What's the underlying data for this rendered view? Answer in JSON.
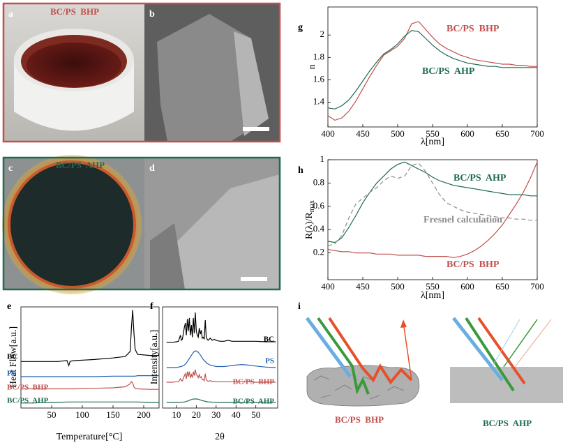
{
  "photos": {
    "a": "a",
    "b": "b",
    "c": "c",
    "d": "d",
    "a_label": "BC/PS  BHP",
    "c_label": "BC/PS  AHP"
  },
  "chart_data": [
    {
      "type": "line",
      "panel": "g",
      "ylabel": "n",
      "xlabel": "λ[nm]",
      "xlim": [
        400,
        700
      ],
      "xticks": [
        400,
        450,
        500,
        550,
        600,
        650,
        700
      ],
      "ylim": [
        1.18,
        2.25
      ],
      "yticks": [
        1.4,
        1.6,
        1.8,
        2
      ],
      "x": [
        400,
        410,
        420,
        430,
        440,
        450,
        460,
        470,
        480,
        490,
        500,
        510,
        520,
        530,
        540,
        550,
        560,
        570,
        580,
        590,
        600,
        610,
        620,
        630,
        640,
        650,
        660,
        670,
        680,
        690,
        700
      ],
      "series": [
        {
          "name": "BC/PS  BHP",
          "color": "#c0504d",
          "values": [
            1.28,
            1.24,
            1.26,
            1.32,
            1.41,
            1.52,
            1.63,
            1.73,
            1.82,
            1.86,
            1.9,
            1.97,
            2.1,
            2.12,
            2.05,
            1.98,
            1.92,
            1.88,
            1.85,
            1.82,
            1.8,
            1.78,
            1.77,
            1.76,
            1.75,
            1.74,
            1.74,
            1.73,
            1.73,
            1.72,
            1.72
          ]
        },
        {
          "name": "BC/PS  AHP",
          "color": "#1e6b50",
          "values": [
            1.35,
            1.34,
            1.37,
            1.42,
            1.5,
            1.59,
            1.68,
            1.76,
            1.83,
            1.87,
            1.92,
            1.99,
            2.04,
            2.03,
            1.97,
            1.91,
            1.86,
            1.82,
            1.79,
            1.77,
            1.75,
            1.74,
            1.73,
            1.72,
            1.72,
            1.71,
            1.71,
            1.71,
            1.71,
            1.71,
            1.71
          ]
        }
      ]
    },
    {
      "type": "line",
      "panel": "h",
      "ylabel": "R(λ)/R",
      "ylabel_subscript": "max",
      "xlabel": "λ[nm]",
      "xlim": [
        400,
        700
      ],
      "xticks": [
        400,
        450,
        500,
        550,
        600,
        650,
        700
      ],
      "ylim": [
        -0.03,
        1
      ],
      "yticks": [
        0.2,
        0.4,
        0.6,
        0.8,
        1
      ],
      "x": [
        400,
        410,
        420,
        430,
        440,
        450,
        460,
        470,
        480,
        490,
        500,
        510,
        520,
        530,
        540,
        550,
        560,
        570,
        580,
        590,
        600,
        610,
        620,
        630,
        640,
        650,
        660,
        670,
        680,
        690,
        700
      ],
      "series": [
        {
          "name": "BC/PS  AHP",
          "color": "#1e6b50",
          "values": [
            0.3,
            0.29,
            0.33,
            0.42,
            0.52,
            0.63,
            0.72,
            0.8,
            0.86,
            0.92,
            0.96,
            0.98,
            0.95,
            0.92,
            0.89,
            0.85,
            0.82,
            0.8,
            0.78,
            0.77,
            0.76,
            0.75,
            0.74,
            0.73,
            0.72,
            0.71,
            0.7,
            0.7,
            0.7,
            0.69,
            0.69
          ]
        },
        {
          "name": "Fresnel calculation",
          "color": "#8c8c8c",
          "dashed": true,
          "values": [
            0.26,
            0.28,
            0.35,
            0.5,
            0.62,
            0.67,
            0.72,
            0.76,
            0.82,
            0.86,
            0.84,
            0.86,
            0.95,
            0.97,
            0.9,
            0.8,
            0.7,
            0.63,
            0.6,
            0.57,
            0.55,
            0.54,
            0.53,
            0.52,
            0.51,
            0.5,
            0.5,
            0.49,
            0.49,
            0.48,
            0.48
          ]
        },
        {
          "name": "BC/PS  BHP",
          "color": "#c0504d",
          "values": [
            0.23,
            0.22,
            0.21,
            0.21,
            0.2,
            0.2,
            0.2,
            0.19,
            0.19,
            0.19,
            0.18,
            0.18,
            0.18,
            0.18,
            0.17,
            0.17,
            0.17,
            0.17,
            0.16,
            0.17,
            0.19,
            0.22,
            0.26,
            0.31,
            0.37,
            0.44,
            0.53,
            0.62,
            0.72,
            0.84,
            0.98
          ]
        }
      ]
    },
    {
      "type": "line",
      "panel": "e",
      "ylabel": "Heat Flow[a.u.]",
      "xlabel": "Temperature[°C]",
      "xlim": [
        0,
        225
      ],
      "xticks": [
        50,
        100,
        150,
        200
      ],
      "ylim": [
        0,
        10
      ],
      "x": [
        0,
        20,
        40,
        60,
        75,
        78,
        80,
        82,
        90,
        120,
        150,
        170,
        178,
        180,
        182,
        184,
        186,
        190,
        210,
        225
      ],
      "series": [
        {
          "name": "BC",
          "color": "#000000",
          "values": [
            4.6,
            4.6,
            4.6,
            4.6,
            4.7,
            4.2,
            4.6,
            4.65,
            4.7,
            4.8,
            4.95,
            5.1,
            5.6,
            8.0,
            9.7,
            7.5,
            5.8,
            5.3,
            5.2,
            5.2
          ]
        },
        {
          "name": "PS",
          "color": "#2060b0",
          "values": [
            3.1,
            3.1,
            3.1,
            3.1,
            3.1,
            3.1,
            3.1,
            3.1,
            3.1,
            3.1,
            3.15,
            3.15,
            3.15,
            3.15,
            3.15,
            3.15,
            3.15,
            3.2,
            3.2,
            3.2
          ]
        },
        {
          "name": "BC/PS  BHP",
          "color": "#c0504d",
          "values": [
            1.9,
            1.9,
            1.9,
            1.9,
            1.9,
            1.9,
            1.9,
            1.9,
            1.9,
            1.95,
            2.0,
            2.1,
            2.4,
            2.6,
            2.5,
            2.1,
            1.95,
            1.9,
            1.85,
            1.85
          ]
        },
        {
          "name": "BC/PS  AHP",
          "color": "#1e6b50",
          "values": [
            0.5,
            0.5,
            0.55,
            0.55,
            0.6,
            0.6,
            0.6,
            0.6,
            0.6,
            0.6,
            0.6,
            0.6,
            0.6,
            0.6,
            0.6,
            0.6,
            0.6,
            0.6,
            0.55,
            0.55
          ]
        }
      ]
    },
    {
      "type": "line",
      "panel": "f",
      "ylabel": "Intensity[a.u.]",
      "xlabel": "2θ",
      "xlim": [
        3,
        61
      ],
      "xticks": [
        10,
        20,
        30,
        40,
        50
      ],
      "ylim": [
        0,
        10
      ],
      "x": [
        5,
        8,
        10,
        11,
        12,
        12.5,
        13,
        14,
        14.5,
        15,
        15.5,
        16,
        16.5,
        17,
        17.5,
        18,
        18.5,
        19,
        19.5,
        20,
        20.5,
        21,
        21.5,
        22,
        22.5,
        23,
        23.5,
        24,
        24.5,
        25,
        25.5,
        26,
        27,
        28,
        29,
        30,
        32,
        34,
        36,
        38,
        40,
        43,
        46,
        50,
        55,
        60
      ],
      "series": [
        {
          "name": "BC",
          "color": "#000000",
          "values": [
            6.5,
            6.5,
            6.55,
            6.6,
            7.2,
            6.7,
            6.8,
            8.0,
            8.4,
            7.2,
            8.8,
            7.6,
            8.9,
            7.2,
            8.2,
            7.0,
            8.9,
            7.4,
            9.45,
            7.6,
            7.2,
            7.0,
            7.9,
            7.3,
            7.7,
            6.9,
            7.0,
            6.8,
            8.7,
            7.0,
            6.8,
            6.7,
            6.9,
            6.7,
            6.8,
            6.7,
            6.6,
            6.6,
            6.7,
            6.6,
            6.6,
            6.6,
            6.6,
            6.6,
            6.55,
            6.55
          ]
        },
        {
          "name": "PS",
          "color": "#2060b0",
          "values": [
            4.0,
            4.0,
            4.0,
            4.05,
            4.1,
            4.1,
            4.15,
            4.25,
            4.35,
            4.45,
            4.6,
            4.75,
            4.9,
            5.05,
            5.2,
            5.35,
            5.5,
            5.6,
            5.65,
            5.65,
            5.6,
            5.5,
            5.4,
            5.25,
            5.1,
            4.95,
            4.8,
            4.7,
            4.6,
            4.5,
            4.4,
            4.35,
            4.25,
            4.2,
            4.15,
            4.1,
            4.1,
            4.1,
            4.15,
            4.2,
            4.25,
            4.3,
            4.25,
            4.15,
            4.05,
            4.0
          ]
        },
        {
          "name": "BC/PS  BHP",
          "color": "#c0504d",
          "values": [
            2.55,
            2.55,
            2.6,
            2.6,
            2.9,
            2.7,
            2.7,
            3.2,
            3.4,
            2.9,
            3.6,
            3.1,
            3.6,
            3.0,
            3.3,
            3.0,
            3.6,
            3.2,
            3.8,
            3.3,
            3.2,
            3.0,
            3.3,
            3.0,
            3.1,
            2.8,
            2.8,
            2.7,
            3.4,
            2.8,
            2.7,
            2.65,
            2.7,
            2.65,
            2.65,
            2.6,
            2.6,
            2.6,
            2.6,
            2.6,
            2.6,
            2.6,
            2.6,
            2.55,
            2.55,
            2.55
          ]
        },
        {
          "name": "BC/PS  AHP",
          "color": "#1e6b50",
          "values": [
            0.55,
            0.55,
            0.55,
            0.55,
            0.56,
            0.57,
            0.58,
            0.6,
            0.62,
            0.65,
            0.68,
            0.72,
            0.76,
            0.8,
            0.84,
            0.87,
            0.89,
            0.9,
            0.9,
            0.9,
            0.89,
            0.87,
            0.84,
            0.8,
            0.77,
            0.74,
            0.71,
            0.68,
            0.66,
            0.64,
            0.62,
            0.61,
            0.59,
            0.58,
            0.57,
            0.56,
            0.55,
            0.55,
            0.55,
            0.55,
            0.55,
            0.55,
            0.55,
            0.55,
            0.55,
            0.55
          ]
        }
      ]
    }
  ],
  "diagram": {
    "letter": "i",
    "left_label": "BC/PS  BHP",
    "right_label": "BC/PS  AHP"
  }
}
